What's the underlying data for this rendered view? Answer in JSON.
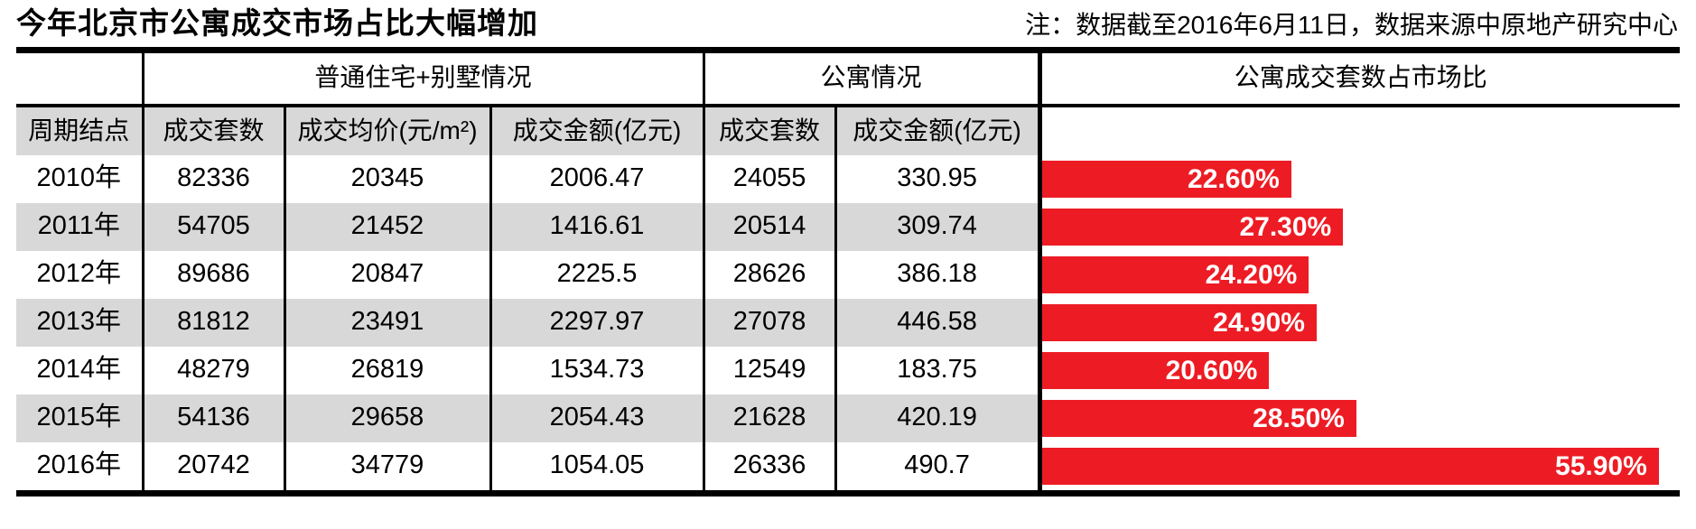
{
  "page": {
    "title": "今年北京市公寓成交市场占比大幅增加",
    "note": "注：数据截至2016年6月11日，数据来源中原地产研究中心"
  },
  "colors": {
    "bar_red": "#ed1c24",
    "stripe_gray": "#d8d8d8",
    "line_black": "#000000"
  },
  "table": {
    "group_headers": [
      "普通住宅+别墅情况",
      "公寓情况",
      "公寓成交套数占市场比"
    ],
    "column_headers": [
      "周期结点",
      "成交套数",
      "成交均价(元/m²)",
      "成交金额(亿元)",
      "成交套数",
      "成交金额(亿元)"
    ],
    "rows": [
      {
        "period": "2010年",
        "housing_units": "82336",
        "housing_avg_price": "20345",
        "housing_amount": "2006.47",
        "apartment_units": "24055",
        "apartment_amount": "330.95",
        "ratio_label": "22.60%",
        "ratio_value": 22.6
      },
      {
        "period": "2011年",
        "housing_units": "54705",
        "housing_avg_price": "21452",
        "housing_amount": "1416.61",
        "apartment_units": "20514",
        "apartment_amount": "309.74",
        "ratio_label": "27.30%",
        "ratio_value": 27.3
      },
      {
        "period": "2012年",
        "housing_units": "89686",
        "housing_avg_price": "20847",
        "housing_amount": "2225.5",
        "apartment_units": "28626",
        "apartment_amount": "386.18",
        "ratio_label": "24.20%",
        "ratio_value": 24.2
      },
      {
        "period": "2013年",
        "housing_units": "81812",
        "housing_avg_price": "23491",
        "housing_amount": "2297.97",
        "apartment_units": "27078",
        "apartment_amount": "446.58",
        "ratio_label": "24.90%",
        "ratio_value": 24.9
      },
      {
        "period": "2014年",
        "housing_units": "48279",
        "housing_avg_price": "26819",
        "housing_amount": "1534.73",
        "apartment_units": "12549",
        "apartment_amount": "183.75",
        "ratio_label": "20.60%",
        "ratio_value": 20.6
      },
      {
        "period": "2015年",
        "housing_units": "54136",
        "housing_avg_price": "29658",
        "housing_amount": "2054.43",
        "apartment_units": "21628",
        "apartment_amount": "420.19",
        "ratio_label": "28.50%",
        "ratio_value": 28.5
      },
      {
        "period": "2016年",
        "housing_units": "20742",
        "housing_avg_price": "34779",
        "housing_amount": "1054.05",
        "apartment_units": "26336",
        "apartment_amount": "490.7",
        "ratio_label": "55.90%",
        "ratio_value": 55.9
      }
    ]
  },
  "chart_data": {
    "type": "bar",
    "orientation": "horizontal",
    "title": "公寓成交套数占市场比",
    "categories": [
      "2010年",
      "2011年",
      "2012年",
      "2013年",
      "2014年",
      "2015年",
      "2016年"
    ],
    "values": [
      22.6,
      27.3,
      24.2,
      24.9,
      20.6,
      28.5,
      55.9
    ],
    "data_labels": [
      "22.60%",
      "27.30%",
      "24.20%",
      "24.90%",
      "20.60%",
      "28.50%",
      "55.90%"
    ],
    "xlabel": "",
    "ylabel": "",
    "xlim": [
      0,
      57.8
    ],
    "grid": false,
    "legend": false,
    "bar_color": "#ed1c24",
    "label_position": "inside-end"
  }
}
